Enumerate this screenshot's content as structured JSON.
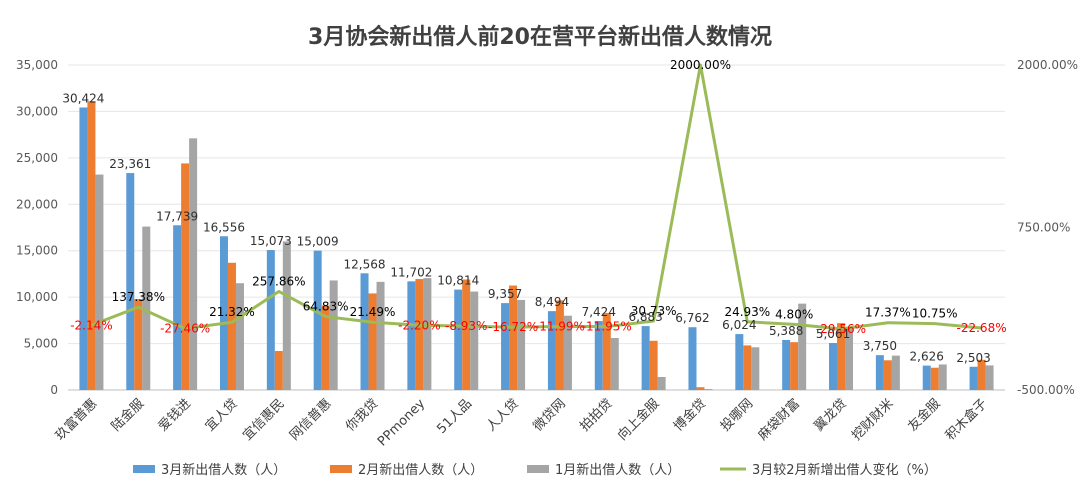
{
  "chart_data": {
    "type": "bar",
    "title": "3月协会新出借人前20在营平台新出借人数情况",
    "categories": [
      "玖富普惠",
      "陆金服",
      "爱钱进",
      "宜人贷",
      "宜信惠民",
      "网信普惠",
      "你我贷",
      "PPmoney",
      "51人品",
      "人人贷",
      "微贷网",
      "拍拍贷",
      "向上金服",
      "博金贷",
      "投哪网",
      "麻袋财富",
      "翼龙贷",
      "挖财财米",
      "友金服",
      "积木盒子"
    ],
    "series": [
      {
        "name": "3月新出借人数（人）",
        "color": "#5b9bd5",
        "values": [
          30424,
          23361,
          17739,
          16556,
          15073,
          15009,
          12568,
          11702,
          10814,
          9357,
          8494,
          7424,
          6883,
          6762,
          6024,
          5388,
          5061,
          3750,
          2626,
          2503
        ]
      },
      {
        "name": "2月新出借人数（人）",
        "color": "#ed7d31",
        "values": [
          31100,
          9800,
          24400,
          13700,
          4200,
          9100,
          10400,
          11950,
          11900,
          11250,
          9650,
          8300,
          5300,
          300,
          4800,
          5150,
          7200,
          3200,
          2400,
          3250
        ]
      },
      {
        "name": "1月新出借人数（人）",
        "color": "#a5a5a5",
        "values": [
          23200,
          17600,
          27100,
          11500,
          16000,
          11800,
          11650,
          12050,
          10600,
          9700,
          8000,
          5600,
          1400,
          100,
          4600,
          9300,
          6600,
          3700,
          2750,
          2650
        ]
      }
    ],
    "line": {
      "name": "3月较2月新增出借人变化（%）",
      "color": "#9bbb59",
      "values": [
        -2.14,
        137.38,
        -27.46,
        21.32,
        257.86,
        64.83,
        21.49,
        -2.2,
        -8.93,
        -16.72,
        -11.99,
        -11.95,
        30.73,
        2000.0,
        24.93,
        4.8,
        -29.56,
        17.37,
        10.75,
        -22.68
      ],
      "labels": [
        "-2.14%",
        "137.38%",
        "-27.46%",
        "21.32%",
        "257.86%",
        "64.83%",
        "21.49%",
        "-2.20%",
        "-8.93%",
        "-16.72%",
        "-11.99%",
        "-11.95%",
        "30.73%",
        "2000.00%",
        "24.93%",
        "4.80%",
        "-29.56%",
        "17.37%",
        "10.75%",
        "-22.68%"
      ]
    },
    "value_labels": [
      "30,424",
      "23,361",
      "17,739",
      "16,556",
      "15,073",
      "15,009",
      "12,568",
      "11,702",
      "10,814",
      "9,357",
      "8,494",
      "7,424",
      "6,883",
      "6,762",
      "6,024",
      "5,388",
      "5,061",
      "3,750",
      "2,626",
      "2,503"
    ],
    "y_left": {
      "min": 0,
      "max": 35000,
      "ticks": [
        "0",
        "5,000",
        "10,000",
        "15,000",
        "20,000",
        "25,000",
        "30,000",
        "35,000"
      ]
    },
    "y_right": {
      "min": -500,
      "max": 2000,
      "ticks": [
        "-500.00%",
        "750.00%",
        "2000.00%"
      ]
    },
    "legend_position": "bottom",
    "negative_label_color": "#ff0000",
    "positive_label_color": "#000000"
  }
}
